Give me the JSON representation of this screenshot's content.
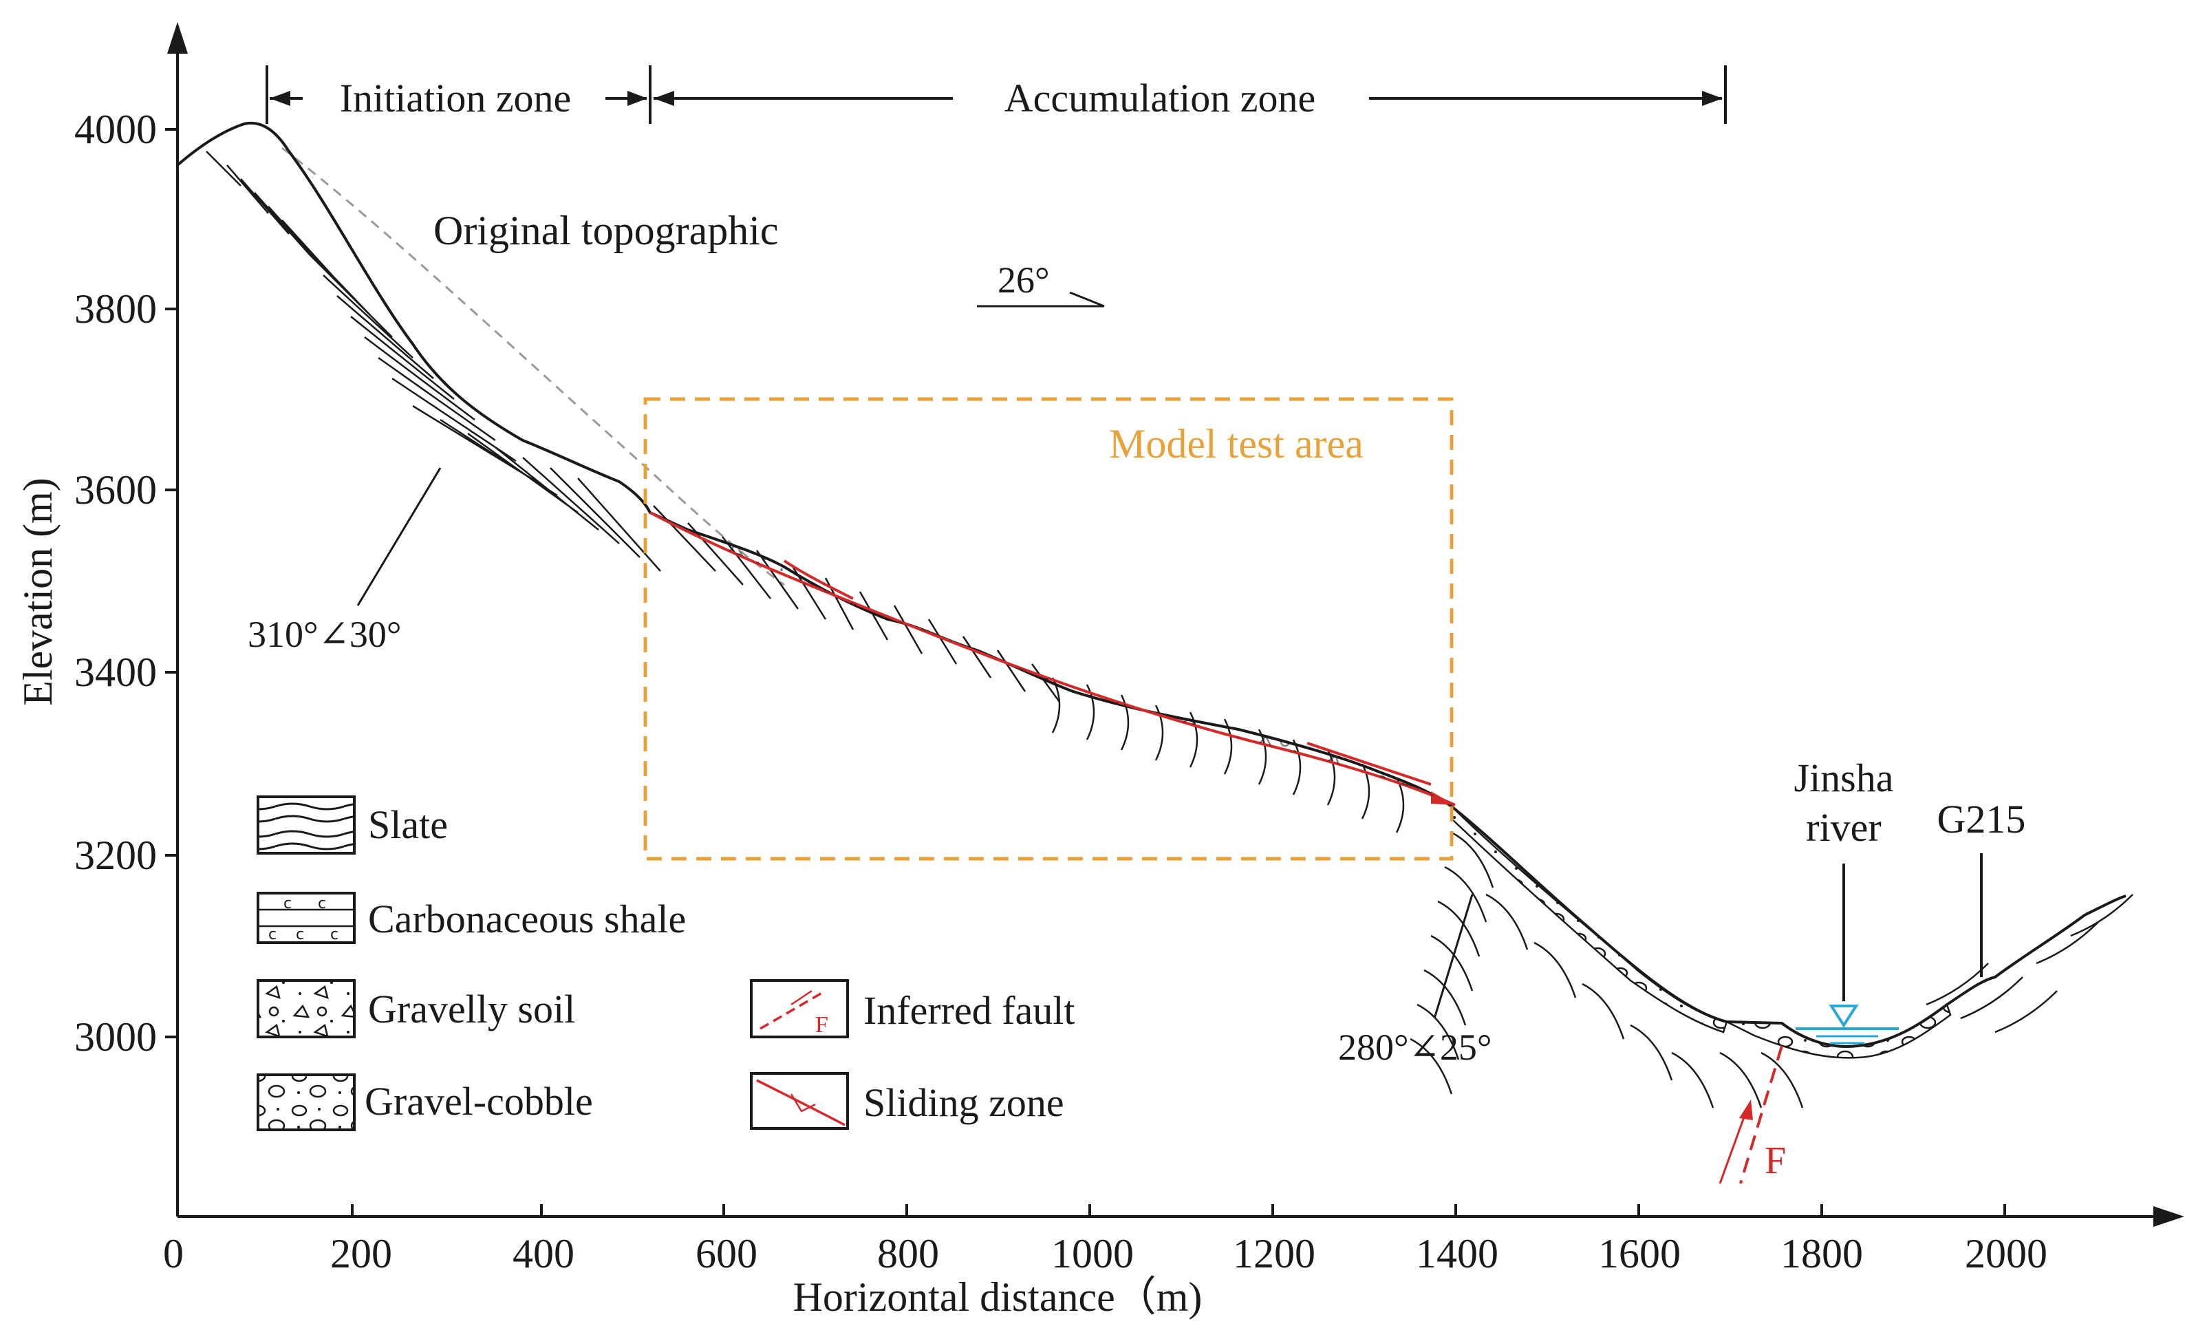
{
  "figure": {
    "y_axis_label": "Elevation (m)",
    "x_axis_label": "Horizontal distance（m)",
    "x_ticks": [
      "0",
      "200",
      "400",
      "600",
      "800",
      "1000",
      "1200",
      "1400",
      "1600",
      "1800",
      "2000"
    ],
    "y_ticks": [
      "3000",
      "3200",
      "3400",
      "3600",
      "3800",
      "4000"
    ]
  },
  "zones": {
    "initiation": "Initiation zone",
    "accumulation": "Accumulation zone"
  },
  "annotations": {
    "original_topographic": "Original topographic",
    "slope_angle": "26°",
    "model_test_area": "Model test area",
    "attitude_upper": "310°∠30°",
    "attitude_lower": "280°∠25°",
    "river_line1": "Jinsha",
    "river_line2": "river",
    "road": "G215",
    "fault_label": "F"
  },
  "legend": {
    "slate": "Slate",
    "carbonaceous_shale": "Carbonaceous shale",
    "gravelly_soil": "Gravelly soil",
    "gravel_cobble": "Gravel-cobble",
    "inferred_fault": "Inferred fault",
    "sliding_zone": "Sliding zone"
  },
  "colors": {
    "model_box": "#e8a23a",
    "sliding": "#d42a2a",
    "water": "#29a8d8",
    "ink": "#1a1a1a"
  }
}
